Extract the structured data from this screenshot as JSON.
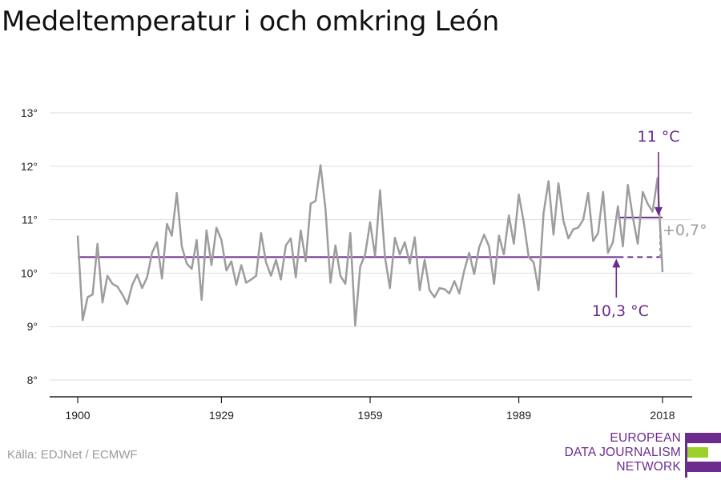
{
  "title": "Medeltemperatur i och omkring León",
  "source": "Källa: EDJNet / ECMWF",
  "logo": {
    "lines": [
      "EUROPEAN",
      "DATA JOURNALISM",
      "NETWORK"
    ],
    "accent": "#6b2c8e",
    "green": "#9bd12a"
  },
  "colors": {
    "line": "#9d9d9d",
    "avg": "#6b2c8e",
    "diff": "#9d9d9d",
    "grid": "#dddddd",
    "axis": "#222222"
  },
  "chart_data": {
    "type": "line",
    "title": "Medeltemperatur i och omkring León",
    "xlim": [
      1900,
      2018
    ],
    "ylim": [
      7.7,
      13.2
    ],
    "xticks": [
      1900,
      1929,
      1959,
      1989,
      2018
    ],
    "yticks": [
      8,
      9,
      10,
      11,
      12,
      13
    ],
    "ytick_labels": [
      "8°",
      "9°",
      "10°",
      "11°",
      "12°",
      "13°"
    ],
    "grid": true,
    "series": [
      {
        "x": [
          1900,
          1901,
          1902,
          1903,
          1904,
          1905,
          1906,
          1907,
          1908,
          1909,
          1910,
          1911,
          1912,
          1913,
          1914,
          1915,
          1916,
          1917,
          1918,
          1919,
          1920,
          1921,
          1922,
          1923,
          1924,
          1925,
          1926,
          1927,
          1928,
          1929,
          1930,
          1931,
          1932,
          1933,
          1934,
          1935,
          1936,
          1937,
          1938,
          1939,
          1940,
          1941,
          1942,
          1943,
          1944,
          1945,
          1946,
          1947,
          1948,
          1949,
          1950,
          1951,
          1952,
          1953,
          1954,
          1955,
          1956,
          1957,
          1958,
          1959,
          1960,
          1961,
          1962,
          1963,
          1964,
          1965,
          1966,
          1967,
          1968,
          1969,
          1970,
          1971,
          1972,
          1973,
          1974,
          1975,
          1976,
          1977,
          1978,
          1979,
          1980,
          1981,
          1982,
          1983,
          1984,
          1985,
          1986,
          1987,
          1988,
          1989,
          1990,
          1991,
          1992,
          1993,
          1994,
          1995,
          1996,
          1997,
          1998,
          1999,
          2000,
          2001,
          2002,
          2003,
          2004,
          2005,
          2006,
          2007,
          2008,
          2009,
          2010,
          2011,
          2012,
          2013,
          2014,
          2015,
          2016,
          2017,
          2018
        ],
        "values": [
          10.7,
          9.12,
          9.55,
          9.6,
          10.55,
          9.45,
          9.95,
          9.8,
          9.75,
          9.6,
          9.42,
          9.78,
          9.97,
          9.72,
          9.92,
          10.38,
          10.58,
          9.9,
          10.92,
          10.7,
          11.5,
          10.5,
          10.18,
          10.08,
          10.62,
          9.5,
          10.8,
          10.15,
          10.85,
          10.62,
          10.05,
          10.22,
          9.78,
          10.15,
          9.82,
          9.88,
          9.95,
          10.75,
          10.2,
          9.95,
          10.25,
          9.88,
          10.52,
          10.65,
          9.92,
          10.8,
          10.22,
          11.3,
          11.35,
          12.02,
          11.2,
          9.82,
          10.52,
          9.95,
          9.8,
          10.75,
          9.02,
          10.12,
          10.35,
          10.95,
          10.32,
          11.55,
          10.3,
          9.72,
          10.66,
          10.35,
          10.58,
          10.18,
          10.67,
          9.68,
          10.25,
          9.68,
          9.55,
          9.72,
          9.7,
          9.62,
          9.85,
          9.62,
          10.05,
          10.38,
          9.98,
          10.48,
          10.72,
          10.5,
          9.8,
          10.7,
          10.35,
          11.08,
          10.55,
          11.47,
          10.95,
          10.3,
          10.2,
          9.68,
          11.12,
          11.72,
          10.72,
          11.68,
          10.98,
          10.65,
          10.82,
          10.85,
          11.0,
          11.5,
          10.6,
          10.75,
          11.52,
          10.38,
          10.58,
          11.25,
          10.5,
          11.65,
          11.05,
          10.55,
          11.52,
          11.3,
          11.15,
          11.78,
          10.02
        ]
      }
    ],
    "reference_lines": [
      {
        "label": "10,3 °C",
        "value": 10.3,
        "x_from": 1900,
        "x_to": 2018,
        "solid_to": 2009
      },
      {
        "label": "11 °C",
        "value": 11.04,
        "x_from": 2009,
        "x_to": 2018
      }
    ],
    "difference_label": "+0,7°"
  }
}
